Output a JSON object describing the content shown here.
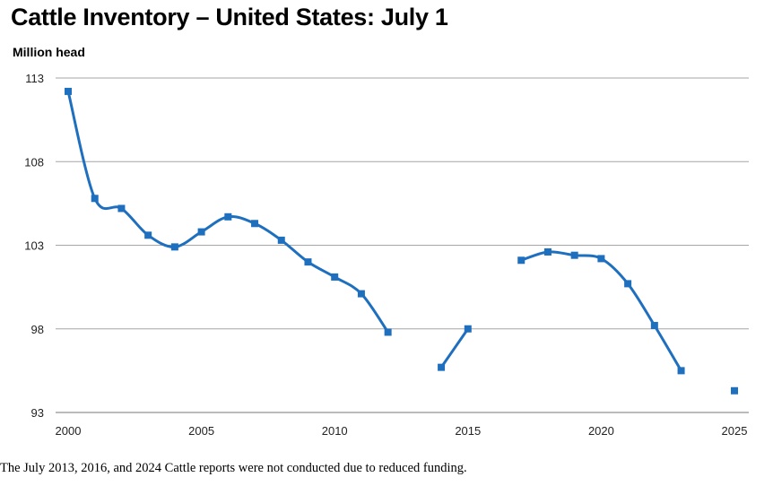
{
  "chart_data": {
    "type": "line",
    "title": "Cattle Inventory – United States: July 1",
    "ylabel": "Million head",
    "xlabel": "",
    "ylim": [
      93,
      113
    ],
    "xlim": [
      2000,
      2025
    ],
    "yticks": [
      "93",
      "98",
      "103",
      "108",
      "113"
    ],
    "xticks": [
      "2000",
      "2005",
      "2010",
      "2015",
      "2020",
      "2025"
    ],
    "grid": "horizontal",
    "color": "#1f6fbf",
    "series": [
      {
        "points": [
          [
            2000,
            112.2
          ],
          [
            2001,
            105.8
          ],
          [
            2002,
            105.2
          ],
          [
            2003,
            103.6
          ],
          [
            2004,
            102.9
          ],
          [
            2005,
            103.8
          ],
          [
            2006,
            104.7
          ],
          [
            2007,
            104.3
          ],
          [
            2008,
            103.3
          ],
          [
            2009,
            102.0
          ],
          [
            2010,
            101.1
          ],
          [
            2011,
            100.1
          ],
          [
            2012,
            97.8
          ],
          [
            2014,
            95.7
          ],
          [
            2015,
            98.0
          ],
          [
            2017,
            102.1
          ],
          [
            2018,
            102.6
          ],
          [
            2019,
            102.4
          ],
          [
            2020,
            102.2
          ],
          [
            2021,
            100.7
          ],
          [
            2022,
            98.2
          ],
          [
            2023,
            95.5
          ],
          [
            2025,
            94.3
          ]
        ]
      }
    ]
  },
  "footnote": "The July 2013, 2016, and 2024 Cattle reports were not conducted due to reduced funding."
}
